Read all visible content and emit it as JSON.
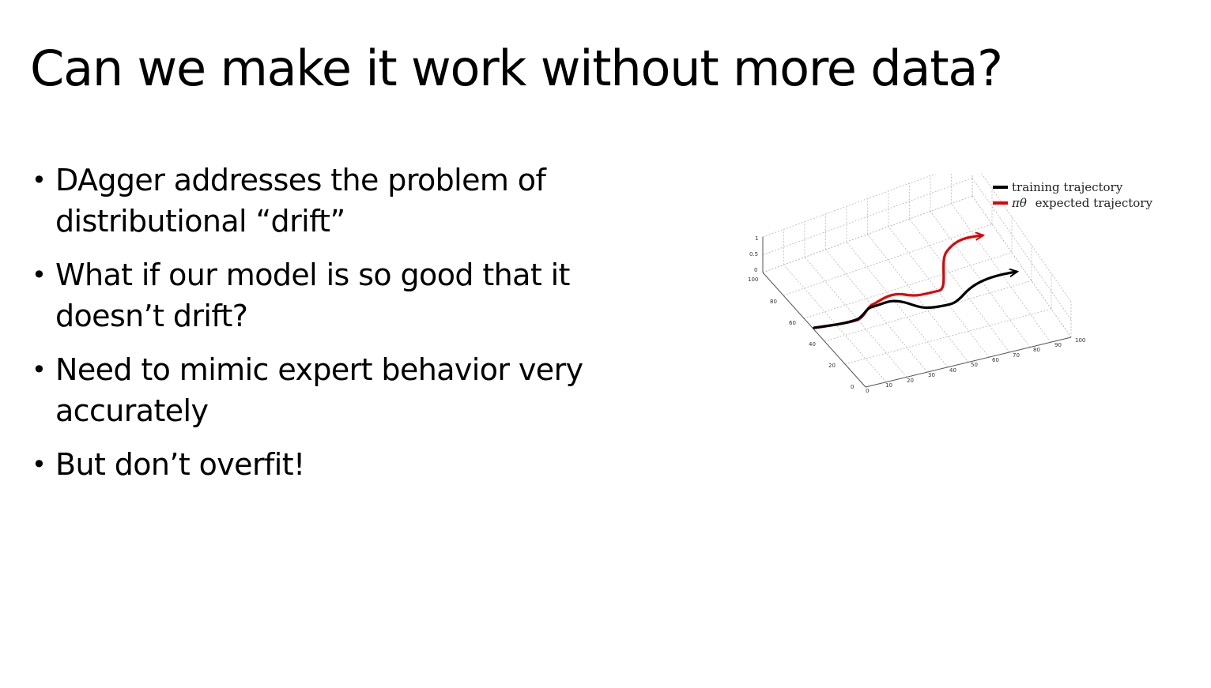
{
  "slide": {
    "title": "Can we make it work without more data?",
    "bullets": [
      "DAgger addresses the problem of distributional “drift”",
      "What if our model is so good that it doesn’t drift?",
      "Need to mimic expert behavior very accurately",
      "But don’t overfit!"
    ]
  },
  "figure": {
    "legend": {
      "training_label": "training trajectory",
      "policy_symbol": "πθ",
      "policy_label": "expected trajectory"
    },
    "z_ticks": [
      "1",
      "0.5",
      "0"
    ],
    "y_ticks": [
      "100",
      "80",
      "60",
      "40",
      "20",
      "0"
    ],
    "x_ticks": [
      "0",
      "10",
      "20",
      "30",
      "40",
      "50",
      "60",
      "70",
      "80",
      "90",
      "100"
    ],
    "colors": {
      "training": "#000000",
      "policy": "#e00000",
      "grid": "#b8b8b8"
    }
  }
}
